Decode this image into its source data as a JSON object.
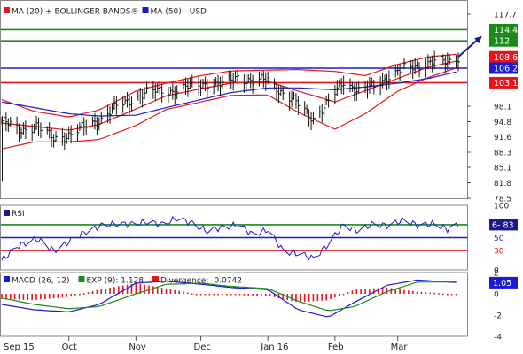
{
  "chart_data": [
    {
      "type": "line",
      "title": "MA (20) + BOLLINGER BANDS®  MA (50) - USD",
      "legend": [
        {
          "label": "MA (20) + BOLLINGER BANDS®",
          "color": "#e8141a"
        },
        {
          "label": "MA (50) - USD",
          "color": "#1a1ad0"
        }
      ],
      "ylim": [
        78.5,
        119.2
      ],
      "y_ticks": [
        "117.7",
        "114.4",
        "112",
        "108.6",
        "106.2",
        "103.1",
        "98.1",
        "94.8",
        "91.6",
        "88.3",
        "85.1",
        "81.8",
        "78.5"
      ],
      "price_labels": [
        {
          "value": 114.4,
          "label": "114.4",
          "color": "#1a8a1a"
        },
        {
          "value": 112.0,
          "label": "112",
          "color": "#1a8a1a"
        },
        {
          "value": 108.6,
          "label": "108.6",
          "color": "#e8141a"
        },
        {
          "value": 106.2,
          "label": "106.2",
          "color": "#1a1ad0"
        },
        {
          "value": 103.1,
          "label": "103.1",
          "color": "#e8141a"
        }
      ],
      "horizontal_lines": [
        {
          "value": 114.4,
          "color": "#1a8a1a"
        },
        {
          "value": 112.0,
          "color": "#1a8a1a"
        },
        {
          "value": 106.2,
          "color": "#1a1ad0"
        },
        {
          "value": 103.1,
          "color": "#e8141a"
        }
      ],
      "x_labels": [
        "Sep 15",
        "Oct",
        "Nov",
        "Dec",
        "Jan 16",
        "Feb",
        "Mar"
      ],
      "x_label_dates": [
        "2015-09-01",
        "2015-10-01",
        "2015-11-01",
        "2015-12-01",
        "2016-01-01",
        "2016-02-01",
        "2016-03-01"
      ],
      "x_range": [
        "2015-08-31",
        "2016-03-29"
      ],
      "price_keypoints": [
        [
          "2015-08-31",
          95.0
        ],
        [
          "2015-09-08",
          93.0
        ],
        [
          "2015-09-16",
          93.8
        ],
        [
          "2015-09-24",
          91.3
        ],
        [
          "2015-10-02",
          92.0
        ],
        [
          "2015-10-09",
          94.0
        ],
        [
          "2015-10-16",
          95.3
        ],
        [
          "2015-10-23",
          98.0
        ],
        [
          "2015-10-30",
          99.5
        ],
        [
          "2015-11-06",
          101.0
        ],
        [
          "2015-11-13",
          101.5
        ],
        [
          "2015-11-20",
          101.3
        ],
        [
          "2015-11-27",
          102.5
        ],
        [
          "2015-12-04",
          103.0
        ],
        [
          "2015-12-11",
          102.6
        ],
        [
          "2015-12-18",
          104.5
        ],
        [
          "2015-12-25",
          103.2
        ],
        [
          "2016-01-01",
          103.8
        ],
        [
          "2016-01-08",
          100.8
        ],
        [
          "2016-01-15",
          98.5
        ],
        [
          "2016-01-22",
          95.5
        ],
        [
          "2016-01-29",
          98.8
        ],
        [
          "2016-02-05",
          103.5
        ],
        [
          "2016-02-12",
          101.3
        ],
        [
          "2016-02-19",
          102.3
        ],
        [
          "2016-02-26",
          104.5
        ],
        [
          "2016-03-04",
          106.0
        ],
        [
          "2016-03-11",
          106.8
        ],
        [
          "2016-03-18",
          107.7
        ],
        [
          "2016-03-24",
          107.4
        ],
        [
          "2016-03-29",
          108.6
        ]
      ],
      "series": [
        {
          "name": "MA (20)",
          "color": "#e8141a",
          "points": [
            [
              "2015-08-31",
              94.5
            ],
            [
              "2015-09-15",
              93.8
            ],
            [
              "2015-10-01",
              93.0
            ],
            [
              "2015-10-15",
              94.2
            ],
            [
              "2015-11-01",
              97.5
            ],
            [
              "2015-11-15",
              100.3
            ],
            [
              "2015-12-01",
              101.8
            ],
            [
              "2015-12-15",
              103.0
            ],
            [
              "2016-01-01",
              103.4
            ],
            [
              "2016-01-15",
              101.3
            ],
            [
              "2016-02-01",
              99.0
            ],
            [
              "2016-02-15",
              101.4
            ],
            [
              "2016-03-01",
              104.0
            ],
            [
              "2016-03-15",
              106.4
            ],
            [
              "2016-03-29",
              107.8
            ]
          ]
        },
        {
          "name": "Bollinger upper",
          "color": "#e8141a",
          "points": [
            [
              "2015-08-31",
              99.5
            ],
            [
              "2015-09-15",
              97.0
            ],
            [
              "2015-10-01",
              95.8
            ],
            [
              "2015-10-15",
              97.3
            ],
            [
              "2015-11-01",
              101.3
            ],
            [
              "2015-11-15",
              103.0
            ],
            [
              "2015-12-01",
              104.6
            ],
            [
              "2015-12-15",
              105.6
            ],
            [
              "2016-01-01",
              105.8
            ],
            [
              "2016-01-15",
              105.9
            ],
            [
              "2016-02-01",
              105.5
            ],
            [
              "2016-02-15",
              104.6
            ],
            [
              "2016-03-01",
              107.0
            ],
            [
              "2016-03-15",
              108.6
            ],
            [
              "2016-03-29",
              109.2
            ]
          ]
        },
        {
          "name": "Bollinger lower",
          "color": "#e8141a",
          "points": [
            [
              "2015-08-31",
              89.0
            ],
            [
              "2015-09-15",
              90.5
            ],
            [
              "2015-10-01",
              90.5
            ],
            [
              "2015-10-15",
              91.0
            ],
            [
              "2015-11-01",
              94.0
            ],
            [
              "2015-11-15",
              97.4
            ],
            [
              "2015-12-01",
              99.0
            ],
            [
              "2015-12-15",
              100.4
            ],
            [
              "2016-01-01",
              100.5
            ],
            [
              "2016-01-15",
              96.8
            ],
            [
              "2016-02-01",
              93.2
            ],
            [
              "2016-02-15",
              96.5
            ],
            [
              "2016-03-01",
              101.3
            ],
            [
              "2016-03-15",
              104.2
            ],
            [
              "2016-03-29",
              106.4
            ]
          ]
        },
        {
          "name": "MA (50)",
          "color": "#1a1ad0",
          "points": [
            [
              "2015-08-31",
              99.0
            ],
            [
              "2015-09-15",
              97.8
            ],
            [
              "2015-10-01",
              96.5
            ],
            [
              "2015-10-15",
              96.0
            ],
            [
              "2015-11-01",
              96.2
            ],
            [
              "2015-11-15",
              97.8
            ],
            [
              "2015-12-01",
              99.5
            ],
            [
              "2015-12-15",
              101.0
            ],
            [
              "2016-01-01",
              102.0
            ],
            [
              "2016-01-15",
              102.0
            ],
            [
              "2016-02-01",
              101.6
            ],
            [
              "2016-02-15",
              102.2
            ],
            [
              "2016-03-01",
              103.0
            ],
            [
              "2016-03-15",
              104.0
            ],
            [
              "2016-03-29",
              105.5
            ]
          ]
        }
      ],
      "forecast_arrow": {
        "from": [
          "2016-03-29",
          108.6
        ],
        "to": [
          "2016-04-09",
          113.0
        ],
        "color": "#1a1a8a"
      }
    },
    {
      "type": "line",
      "title": "RSI",
      "ylim": [
        0,
        100
      ],
      "y_ticks": [
        "100",
        "50",
        "30",
        "0"
      ],
      "value_label": "6- 83",
      "levels": [
        {
          "value": 70,
          "color": "#1a8a1a"
        },
        {
          "value": 50,
          "color": "#1a1ad0"
        },
        {
          "value": 30,
          "color": "#e8141a"
        }
      ],
      "level_labels": [
        {
          "value": 50,
          "label": "50",
          "color": "#1a1ad0"
        },
        {
          "value": 30,
          "label": "30",
          "color": "#e8141a"
        }
      ],
      "series": [
        {
          "name": "RSI",
          "color": "#1a1ad0",
          "points": [
            [
              "2015-08-31",
              15
            ],
            [
              "2015-09-08",
              38
            ],
            [
              "2015-09-16",
              48
            ],
            [
              "2015-09-24",
              30
            ],
            [
              "2015-10-02",
              45
            ],
            [
              "2015-10-09",
              60
            ],
            [
              "2015-10-16",
              68
            ],
            [
              "2015-10-23",
              72
            ],
            [
              "2015-10-30",
              70
            ],
            [
              "2015-11-06",
              75
            ],
            [
              "2015-11-13",
              70
            ],
            [
              "2015-11-20",
              80
            ],
            [
              "2015-11-27",
              72
            ],
            [
              "2015-12-04",
              60
            ],
            [
              "2015-12-11",
              66
            ],
            [
              "2015-12-18",
              70
            ],
            [
              "2015-12-25",
              55
            ],
            [
              "2016-01-01",
              62
            ],
            [
              "2016-01-08",
              30
            ],
            [
              "2016-01-15",
              25
            ],
            [
              "2016-01-22",
              18
            ],
            [
              "2016-01-29",
              40
            ],
            [
              "2016-02-05",
              70
            ],
            [
              "2016-02-12",
              60
            ],
            [
              "2016-02-19",
              72
            ],
            [
              "2016-02-26",
              68
            ],
            [
              "2016-03-04",
              78
            ],
            [
              "2016-03-11",
              68
            ],
            [
              "2016-03-18",
              72
            ],
            [
              "2016-03-24",
              63
            ],
            [
              "2016-03-29",
              70
            ]
          ]
        }
      ]
    },
    {
      "type": "bar",
      "title": "MACD (26, 12)",
      "legend": [
        {
          "label": "MACD (26, 12)",
          "color": "#1a1ad0"
        },
        {
          "label": "EXP (9): 1.128",
          "color": "#1a8a1a"
        },
        {
          "label": "Divergence: -0.0742",
          "color": "#e8141a"
        }
      ],
      "ylim": [
        -4,
        2
      ],
      "y_ticks": [
        "2",
        "0",
        "-2",
        "-4"
      ],
      "value_label": "1.05",
      "series": [
        {
          "name": "MACD (26, 12)",
          "color": "#1a1ad0",
          "points": [
            [
              "2015-08-31",
              -1.0
            ],
            [
              "2015-09-15",
              -1.5
            ],
            [
              "2015-10-01",
              -1.7
            ],
            [
              "2015-10-15",
              -1.0
            ],
            [
              "2015-11-01",
              1.0
            ],
            [
              "2015-11-15",
              1.2
            ],
            [
              "2015-12-01",
              0.9
            ],
            [
              "2015-12-15",
              0.6
            ],
            [
              "2016-01-01",
              0.4
            ],
            [
              "2016-01-15",
              -1.5
            ],
            [
              "2016-01-29",
              -2.2
            ],
            [
              "2016-02-10",
              -0.8
            ],
            [
              "2016-02-25",
              0.8
            ],
            [
              "2016-03-10",
              1.3
            ],
            [
              "2016-03-29",
              1.05
            ]
          ]
        },
        {
          "name": "EXP (9)",
          "color": "#1a8a1a",
          "points": [
            [
              "2015-08-31",
              -0.4
            ],
            [
              "2015-09-15",
              -1.0
            ],
            [
              "2015-10-01",
              -1.4
            ],
            [
              "2015-10-15",
              -1.2
            ],
            [
              "2015-11-01",
              0.0
            ],
            [
              "2015-11-15",
              0.9
            ],
            [
              "2015-12-01",
              1.0
            ],
            [
              "2015-12-15",
              0.7
            ],
            [
              "2016-01-01",
              0.5
            ],
            [
              "2016-01-15",
              -0.7
            ],
            [
              "2016-01-29",
              -1.6
            ],
            [
              "2016-02-10",
              -1.2
            ],
            [
              "2016-02-25",
              0.2
            ],
            [
              "2016-03-10",
              1.1
            ],
            [
              "2016-03-29",
              1.128
            ]
          ]
        }
      ],
      "divergence_keypoints": [
        [
          "2015-08-31",
          -0.5
        ],
        [
          "2015-09-15",
          -0.6
        ],
        [
          "2015-10-01",
          -0.3
        ],
        [
          "2015-10-15",
          0.4
        ],
        [
          "2015-11-01",
          1.0
        ],
        [
          "2015-11-15",
          0.5
        ],
        [
          "2015-12-01",
          -0.1
        ],
        [
          "2015-12-15",
          -0.1
        ],
        [
          "2016-01-01",
          -0.2
        ],
        [
          "2016-01-15",
          -0.8
        ],
        [
          "2016-01-29",
          -0.6
        ],
        [
          "2016-02-10",
          0.4
        ],
        [
          "2016-02-25",
          0.6
        ],
        [
          "2016-03-10",
          0.2
        ],
        [
          "2016-03-29",
          -0.07
        ]
      ],
      "divergence_color": "#e8141a"
    }
  ]
}
